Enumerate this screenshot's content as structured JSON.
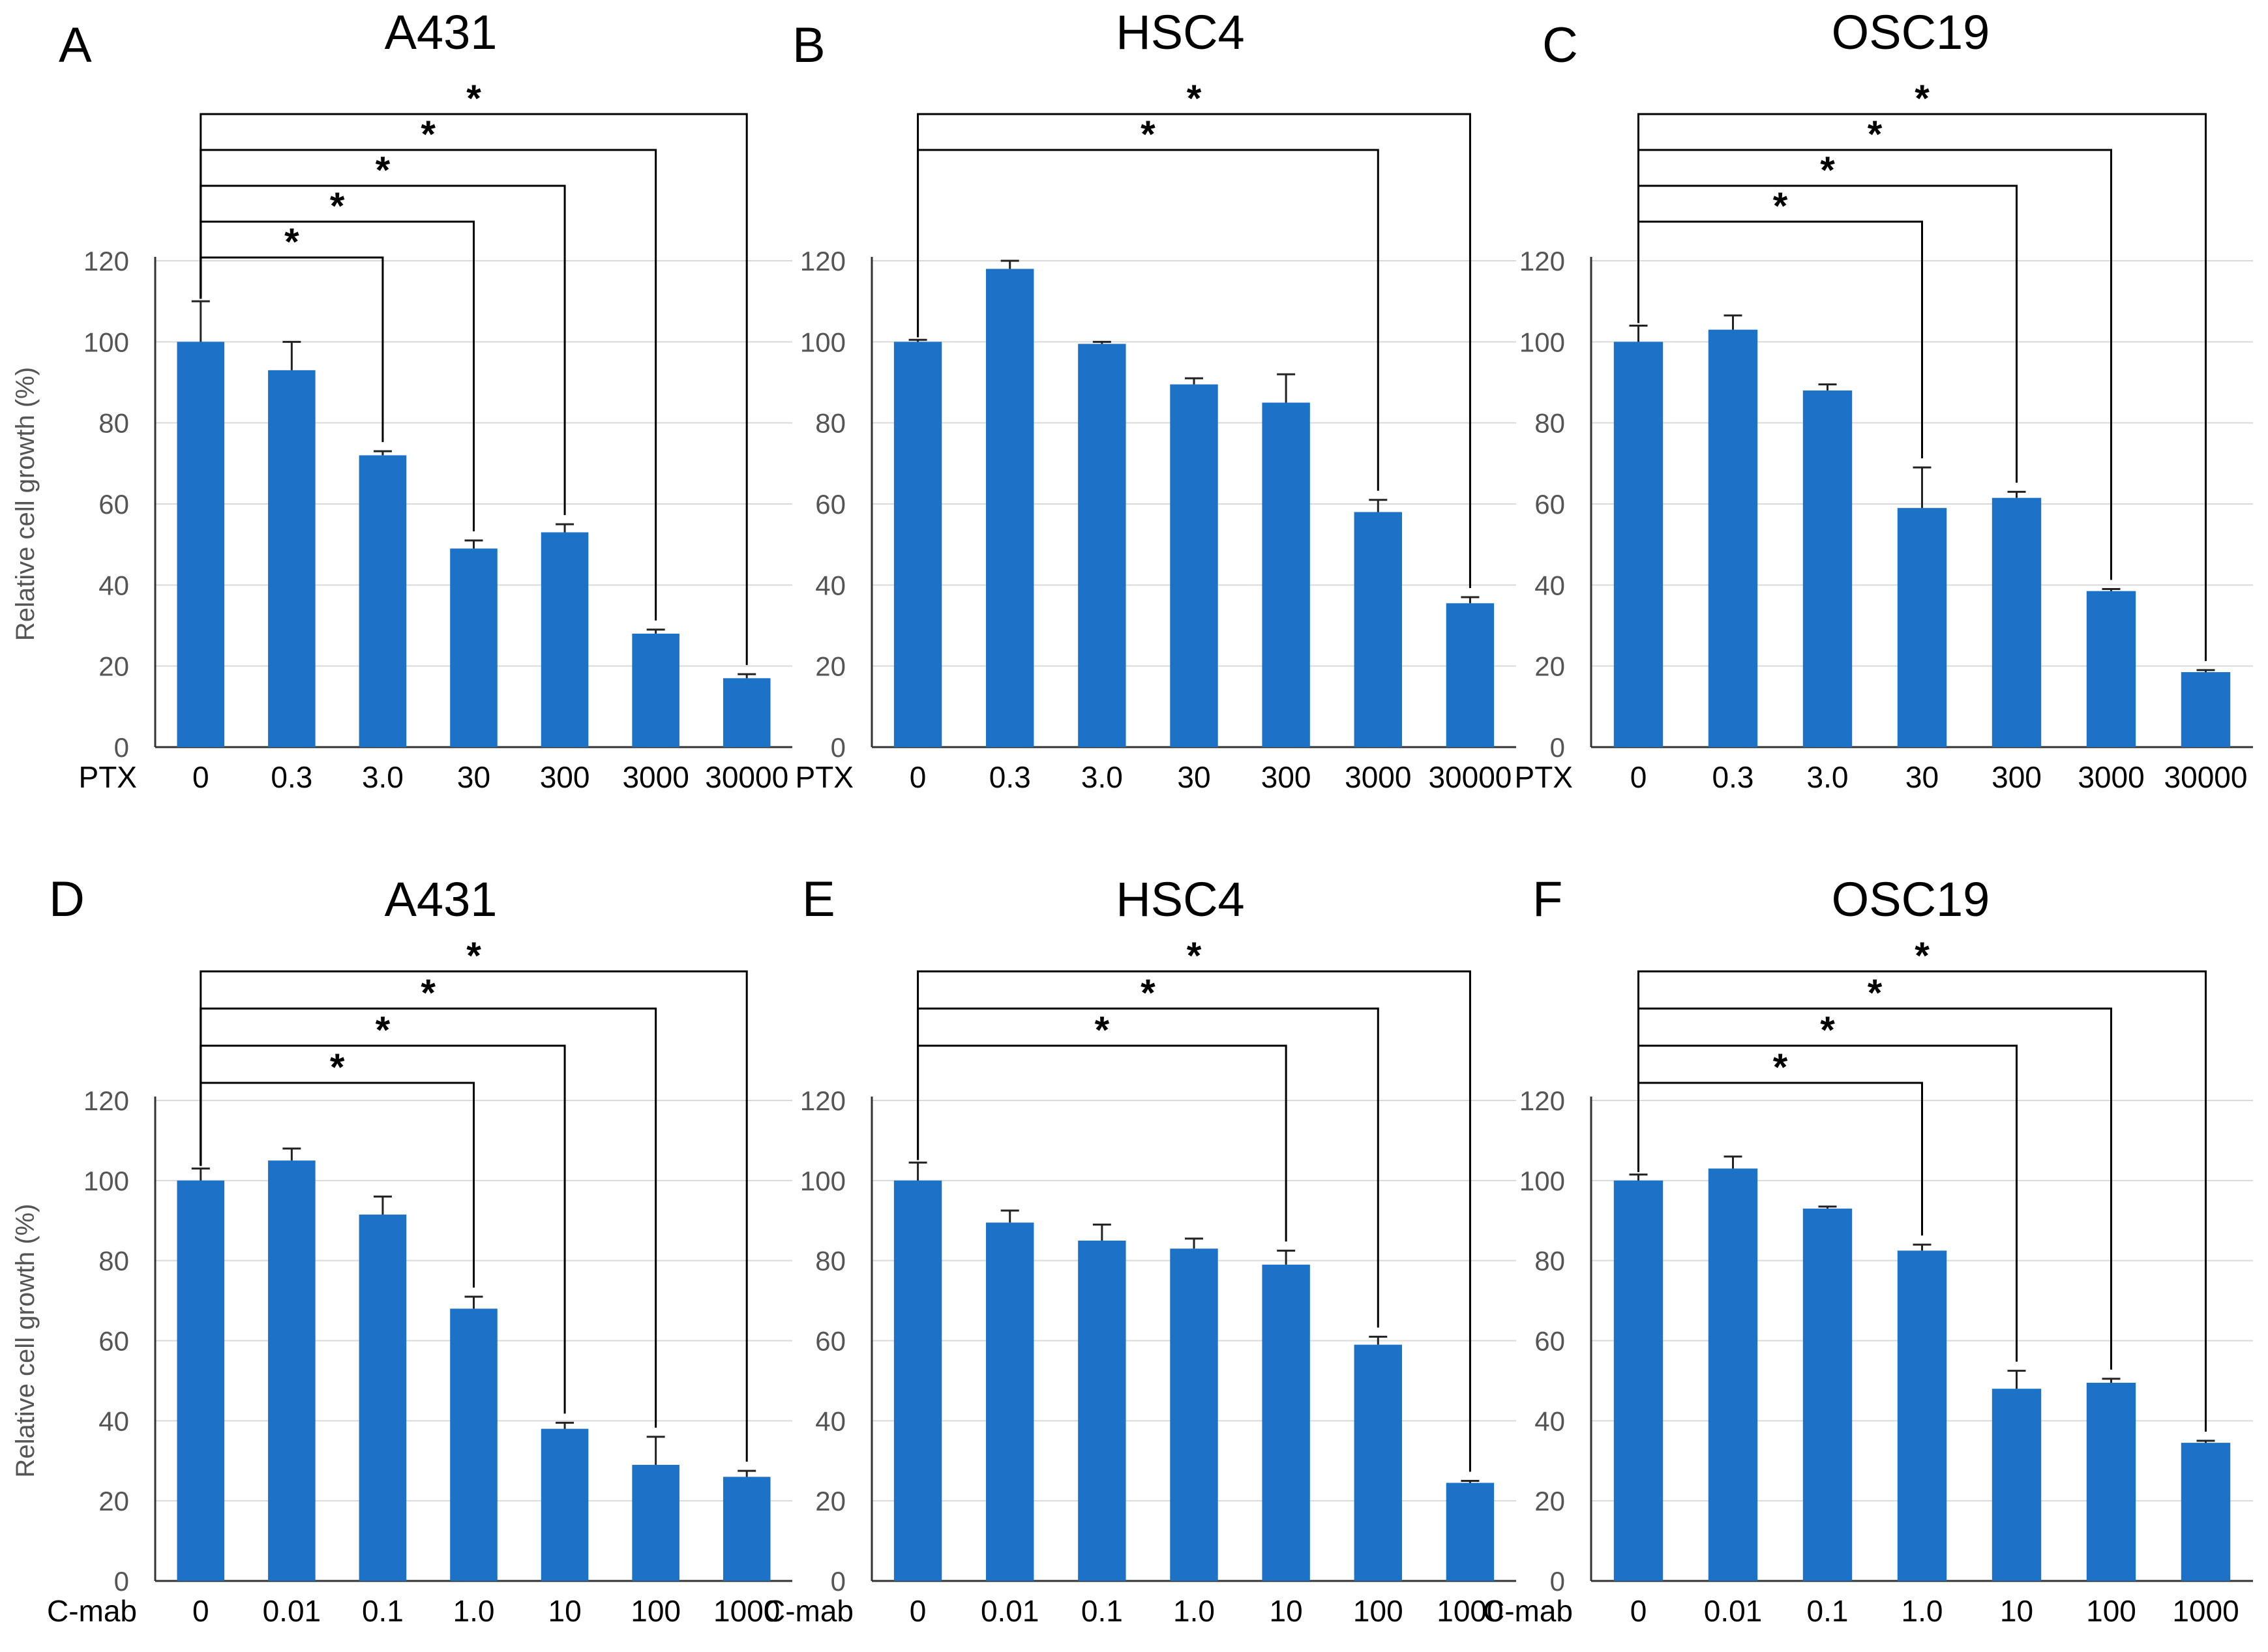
{
  "figure": {
    "ylabel": "Relative  cell growth  (%)"
  },
  "chart_data": [
    {
      "panel": "A",
      "title": "A431",
      "type": "bar",
      "xlabel": "PTX",
      "categories": [
        "0",
        "0.3",
        "3.0",
        "30",
        "300",
        "3000",
        "30000"
      ],
      "values": [
        100,
        93,
        72,
        49,
        53,
        28,
        17
      ],
      "errors": [
        10,
        7,
        1,
        2,
        2,
        1,
        1
      ],
      "ylim": [
        0,
        120
      ],
      "yticks": [
        0,
        20,
        40,
        60,
        80,
        100,
        120
      ],
      "ylabel": "Relative  cell growth  (%)",
      "significance": [
        {
          "from": 0,
          "to": 2,
          "label": "*"
        },
        {
          "from": 0,
          "to": 3,
          "label": "*"
        },
        {
          "from": 0,
          "to": 4,
          "label": "*"
        },
        {
          "from": 0,
          "to": 5,
          "label": "*"
        },
        {
          "from": 0,
          "to": 6,
          "label": "*"
        }
      ]
    },
    {
      "panel": "B",
      "title": "HSC4",
      "type": "bar",
      "xlabel": "PTX",
      "categories": [
        "0",
        "0.3",
        "3.0",
        "30",
        "300",
        "3000",
        "30000"
      ],
      "values": [
        100,
        118,
        99.5,
        89.5,
        85,
        58,
        35.5
      ],
      "errors": [
        0.5,
        2,
        0.5,
        1.5,
        7,
        3,
        1.5
      ],
      "ylim": [
        0,
        120
      ],
      "yticks": [
        0,
        20,
        40,
        60,
        80,
        100,
        120
      ],
      "ylabel": "",
      "significance": [
        {
          "from": 0,
          "to": 5,
          "label": "*"
        },
        {
          "from": 0,
          "to": 6,
          "label": "*"
        }
      ]
    },
    {
      "panel": "C",
      "title": "OSC19",
      "type": "bar",
      "xlabel": "PTX",
      "categories": [
        "0",
        "0.3",
        "3.0",
        "30",
        "300",
        "3000",
        "30000"
      ],
      "values": [
        100,
        103,
        88,
        59,
        61.5,
        38.5,
        18.5
      ],
      "errors": [
        4,
        3.5,
        1.5,
        10,
        1.5,
        0.5,
        0.5
      ],
      "ylim": [
        0,
        120
      ],
      "yticks": [
        0,
        20,
        40,
        60,
        80,
        100,
        120
      ],
      "ylabel": "",
      "significance": [
        {
          "from": 0,
          "to": 3,
          "label": "*"
        },
        {
          "from": 0,
          "to": 4,
          "label": "*"
        },
        {
          "from": 0,
          "to": 5,
          "label": "*"
        },
        {
          "from": 0,
          "to": 6,
          "label": "*"
        }
      ]
    },
    {
      "panel": "D",
      "title": "A431",
      "type": "bar",
      "xlabel": "C-mab",
      "categories": [
        "0",
        "0.01",
        "0.1",
        "1.0",
        "10",
        "100",
        "1000"
      ],
      "values": [
        100,
        105,
        91.5,
        68,
        38,
        29,
        26
      ],
      "errors": [
        3,
        3,
        4.5,
        3,
        1.5,
        7,
        1.5
      ],
      "ylim": [
        0,
        120
      ],
      "yticks": [
        0,
        20,
        40,
        60,
        80,
        100,
        120
      ],
      "ylabel": "Relative  cell growth  (%)",
      "significance": [
        {
          "from": 0,
          "to": 3,
          "label": "*"
        },
        {
          "from": 0,
          "to": 4,
          "label": "*"
        },
        {
          "from": 0,
          "to": 5,
          "label": "*"
        },
        {
          "from": 0,
          "to": 6,
          "label": "*"
        }
      ]
    },
    {
      "panel": "E",
      "title": "HSC4",
      "type": "bar",
      "xlabel": "C-mab",
      "categories": [
        "0",
        "0.01",
        "0.1",
        "1.0",
        "10",
        "100",
        "1000"
      ],
      "values": [
        100,
        89.5,
        85,
        83,
        79,
        59,
        24.5
      ],
      "errors": [
        4.5,
        3,
        4,
        2.5,
        3.5,
        2,
        0.5
      ],
      "ylim": [
        0,
        120
      ],
      "yticks": [
        0,
        20,
        40,
        60,
        80,
        100,
        120
      ],
      "ylabel": "",
      "significance": [
        {
          "from": 0,
          "to": 4,
          "label": "*"
        },
        {
          "from": 0,
          "to": 5,
          "label": "*"
        },
        {
          "from": 0,
          "to": 6,
          "label": "*"
        }
      ]
    },
    {
      "panel": "F",
      "title": "OSC19",
      "type": "bar",
      "xlabel": "C-mab",
      "categories": [
        "0",
        "0.01",
        "0.1",
        "1.0",
        "10",
        "100",
        "1000"
      ],
      "values": [
        100,
        103,
        93,
        82.5,
        48,
        49.5,
        34.5
      ],
      "errors": [
        1.5,
        3,
        0.5,
        1.5,
        4.5,
        1,
        0.5
      ],
      "ylim": [
        0,
        120
      ],
      "yticks": [
        0,
        20,
        40,
        60,
        80,
        100,
        120
      ],
      "ylabel": "",
      "significance": [
        {
          "from": 0,
          "to": 3,
          "label": "*"
        },
        {
          "from": 0,
          "to": 4,
          "label": "*"
        },
        {
          "from": 0,
          "to": 5,
          "label": "*"
        },
        {
          "from": 0,
          "to": 6,
          "label": "*"
        }
      ]
    }
  ],
  "colors": {
    "bar": "#1b72c7",
    "grid": "#d9d9d9",
    "axis": "#000000"
  }
}
